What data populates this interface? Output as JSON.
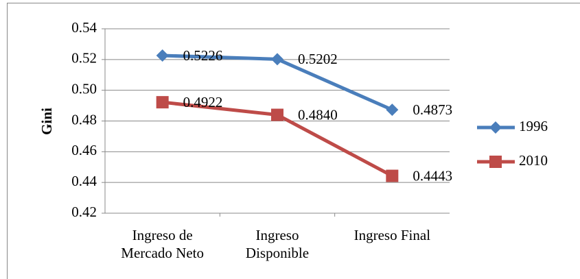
{
  "chart_data": {
    "type": "line",
    "y_label": "Gini",
    "categories": [
      "Ingreso de Mercado Neto",
      "Ingreso Disponible",
      "Ingreso Final"
    ],
    "series": [
      {
        "name": "1996",
        "color": "#4a7ebb",
        "marker": "diamond",
        "values": [
          0.5226,
          0.5202,
          0.4873
        ],
        "value_labels": [
          "0.5226",
          "0.5202",
          "0.4873"
        ]
      },
      {
        "name": "2010",
        "color": "#be4b48",
        "marker": "square",
        "values": [
          0.4922,
          0.484,
          0.4443
        ],
        "value_labels": [
          "0.4922",
          "0.4840",
          "0.4443"
        ]
      }
    ],
    "ylim": [
      0.42,
      0.54
    ],
    "yticks": [
      0.42,
      0.44,
      0.46,
      0.48,
      {
        "value": 0.5,
        "label": "0.50"
      },
      0.52,
      0.54
    ],
    "grid": true,
    "legend": "right"
  }
}
